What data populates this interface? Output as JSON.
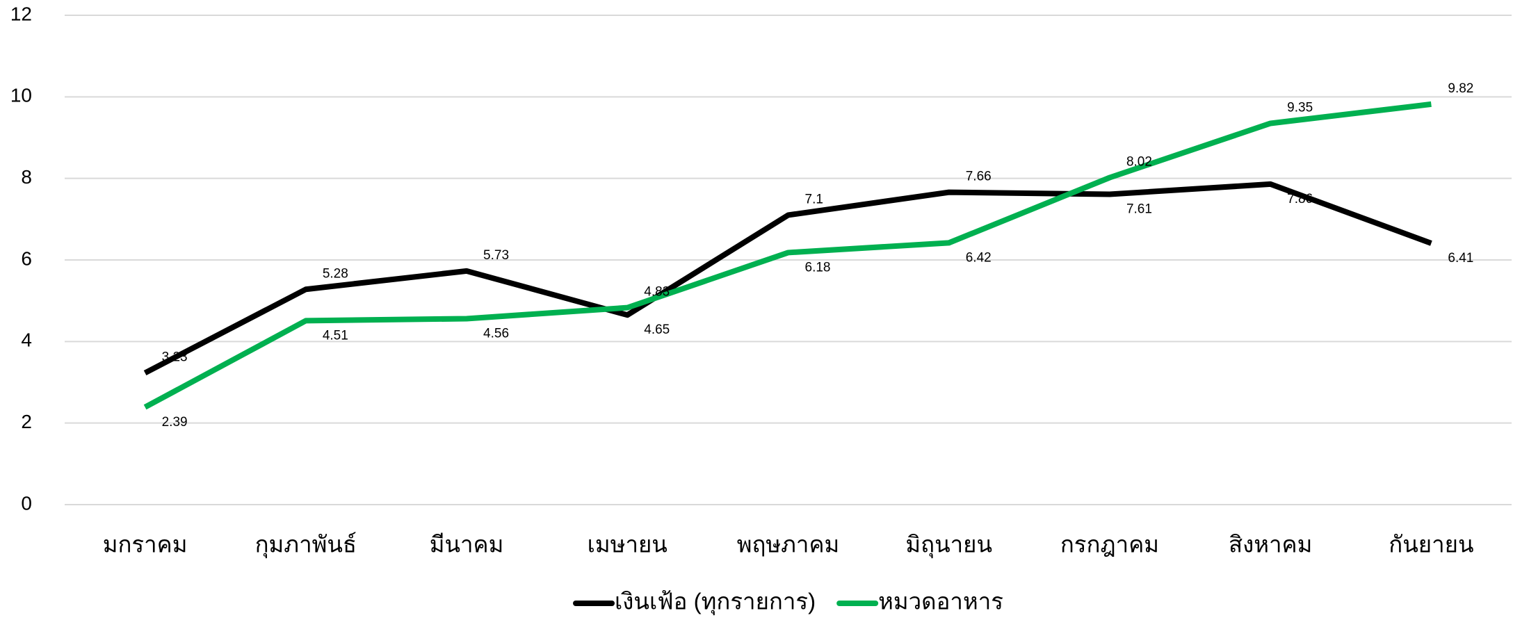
{
  "chart_data": {
    "type": "line",
    "categories": [
      "มกราคม",
      "กุมภาพันธ์",
      "มีนาคม",
      "เมษายน",
      "พฤษภาคม",
      "มิถุนายน",
      "กรกฎาคม",
      "สิงหาคม",
      "กันยายน"
    ],
    "series": [
      {
        "name": "เงินเฟ้อ (ทุกรายการ)",
        "color": "#000000",
        "values": [
          3.23,
          5.28,
          5.73,
          4.65,
          7.1,
          7.66,
          7.61,
          7.86,
          6.41
        ]
      },
      {
        "name": "หมวดอาหาร",
        "color": "#00b050",
        "values": [
          2.39,
          4.51,
          4.56,
          4.83,
          6.18,
          6.42,
          8.02,
          9.35,
          9.82
        ]
      }
    ],
    "ylim": [
      0,
      12
    ],
    "yticks": [
      0,
      2,
      4,
      6,
      8,
      10,
      12
    ],
    "grid": true,
    "legend": "bottom"
  }
}
